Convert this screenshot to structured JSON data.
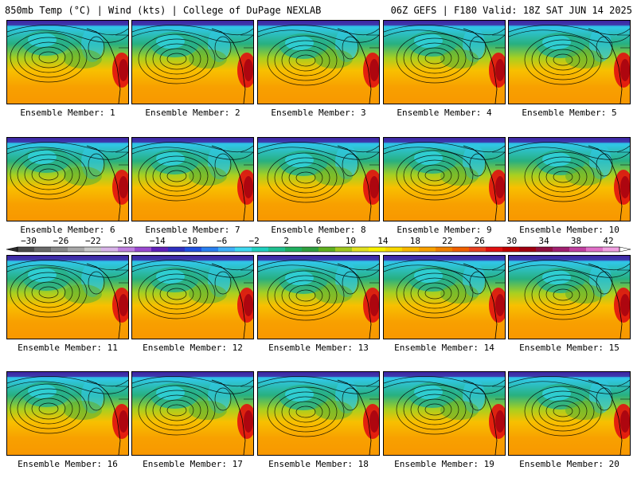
{
  "header": {
    "left": "850mb Temp (°C) | Wind (kts) | College of DuPage NEXLAB",
    "right": "06Z GEFS | F180 Valid: 18Z SAT JUN 14 2025"
  },
  "panels": [
    {
      "label": "Ensemble Member: 1"
    },
    {
      "label": "Ensemble Member: 2"
    },
    {
      "label": "Ensemble Member: 3"
    },
    {
      "label": "Ensemble Member: 4"
    },
    {
      "label": "Ensemble Member: 5"
    },
    {
      "label": "Ensemble Member: 6"
    },
    {
      "label": "Ensemble Member: 7"
    },
    {
      "label": "Ensemble Member: 8"
    },
    {
      "label": "Ensemble Member: 9"
    },
    {
      "label": "Ensemble Member: 10"
    },
    {
      "label": "Ensemble Member: 11"
    },
    {
      "label": "Ensemble Member: 12"
    },
    {
      "label": "Ensemble Member: 13"
    },
    {
      "label": "Ensemble Member: 14"
    },
    {
      "label": "Ensemble Member: 15"
    },
    {
      "label": "Ensemble Member: 16"
    },
    {
      "label": "Ensemble Member: 17"
    },
    {
      "label": "Ensemble Member: 18"
    },
    {
      "label": "Ensemble Member: 19"
    },
    {
      "label": "Ensemble Member: 20"
    }
  ],
  "colorbar": {
    "labels": [
      "−30",
      "−26",
      "−22",
      "−18",
      "−14",
      "−10",
      "−6",
      "−2",
      "2",
      "6",
      "10",
      "14",
      "18",
      "22",
      "26",
      "30",
      "34",
      "38",
      "42"
    ],
    "colors": [
      "#4a4a4a",
      "#6a6a6a",
      "#8a8a8a",
      "#a8a8a8",
      "#c8c8c8",
      "#d8b4e8",
      "#c080e0",
      "#9a4ad0",
      "#6020b8",
      "#3030c0",
      "#2050e0",
      "#2a80f0",
      "#40b0f8",
      "#40d8f0",
      "#20d0c0",
      "#20c090",
      "#20b060",
      "#30a040",
      "#60b020",
      "#a0c820",
      "#e0e020",
      "#f8f000",
      "#f8d800",
      "#f8b800",
      "#f8a000",
      "#f08000",
      "#f06000",
      "#e84020",
      "#e01010",
      "#c00000",
      "#a00010",
      "#901040",
      "#a02070",
      "#c040a0",
      "#e070c8",
      "#f0a0e0"
    ]
  }
}
